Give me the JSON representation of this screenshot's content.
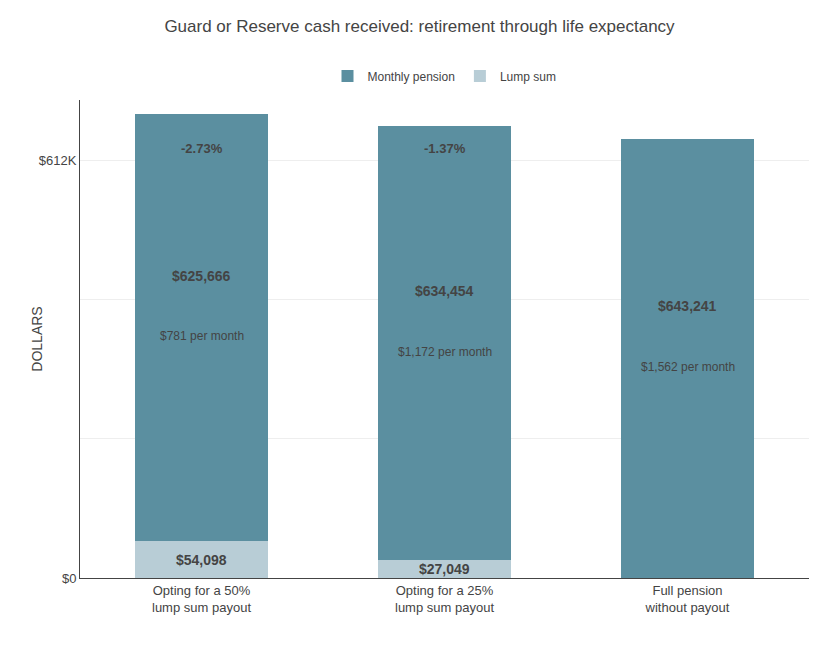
{
  "chart_data": {
    "type": "bar",
    "stacked": true,
    "title": "Guard or Reserve cash received: retirement through life expectancy",
    "ylabel": "DOLLARS",
    "categories": [
      "Opting for a 50%\nlump sum payout",
      "Opting for a 25%\nlump sum payout",
      "Full pension\nwithout payout"
    ],
    "series": [
      {
        "name": "Lump sum",
        "color": "#B8CDD6",
        "values": [
          54098,
          27049,
          0
        ],
        "value_labels": [
          "$54,098",
          "$27,049",
          null
        ]
      },
      {
        "name": "Monthly pension",
        "color": "#5B8FA0",
        "values": [
          625666,
          634454,
          643241
        ],
        "value_labels": [
          "$625,666",
          "$634,454",
          "$643,241"
        ]
      }
    ],
    "data_labels": true,
    "annotations": {
      "monthly": [
        "$781 per month",
        "$1,172 per month",
        "$1,562 per month"
      ],
      "rate": [
        "-2.73%",
        "-1.37%",
        null
      ]
    },
    "ylim": [
      0,
      700000
    ],
    "yticks": [
      {
        "value": 0,
        "label": "$0"
      },
      {
        "value": 204000,
        "label": null
      },
      {
        "value": 408000,
        "label": null
      },
      {
        "value": 612000,
        "label": "$612K"
      }
    ],
    "grid": true,
    "legend": "top"
  }
}
